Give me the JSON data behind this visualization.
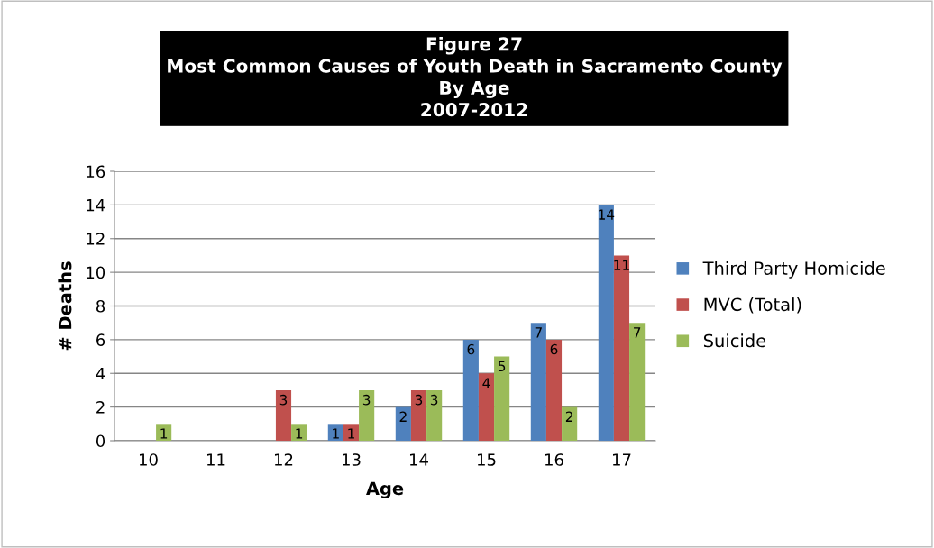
{
  "chart_data": {
    "type": "bar",
    "title": "Figure 27\nMost Common Causes of Youth Death in Sacramento County\nBy Age\n2007-2012",
    "xlabel": "Age",
    "ylabel": "# Deaths",
    "categories": [
      "10",
      "11",
      "12",
      "13",
      "14",
      "15",
      "16",
      "17"
    ],
    "series": [
      {
        "name": "Third Party Homicide",
        "color": "#4f81bd",
        "values": [
          0,
          0,
          0,
          1,
          2,
          6,
          7,
          14
        ],
        "value_labels": [
          null,
          null,
          null,
          "1",
          "2",
          "6",
          "7",
          "14"
        ]
      },
      {
        "name": "MVC (Total)",
        "color": "#c0504d",
        "values": [
          0,
          0,
          3,
          1,
          3,
          4,
          6,
          11
        ],
        "value_labels": [
          null,
          null,
          "3",
          "1",
          "3",
          "4",
          "6",
          "11"
        ]
      },
      {
        "name": "Suicide",
        "color": "#9bbb59",
        "values": [
          1,
          0,
          1,
          3,
          3,
          5,
          2,
          7
        ],
        "value_labels": [
          "1",
          null,
          "1",
          "3",
          "3",
          "5",
          "2",
          "7"
        ]
      }
    ],
    "ylim": [
      0,
      16
    ],
    "yticks": [
      0,
      2,
      4,
      6,
      8,
      10,
      12,
      14,
      16
    ],
    "grid": "y",
    "legend": "right"
  }
}
